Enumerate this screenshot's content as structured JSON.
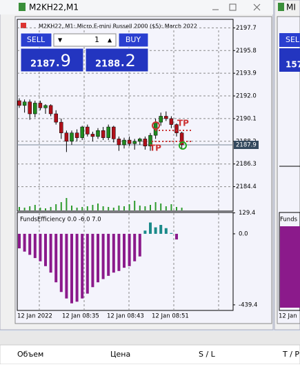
{
  "window": {
    "title": "M2KH22,M1",
    "chart_title": "M2KH22, M1:  Micro E-mini Russell 2000 ($5): March 2022"
  },
  "trade_panel": {
    "sell": "SELL",
    "buy": "BUY",
    "volume": "1",
    "bid_big": "2187",
    "bid_small": ".9",
    "ask_big": "2188",
    "ask_small": ".2"
  },
  "chart": {
    "ylim": [
      2182.7,
      2198.3
    ],
    "yticks": [
      {
        "value": 2197.7,
        "label": "2197.7"
      },
      {
        "value": 2195.8,
        "label": "2195.8"
      },
      {
        "value": 2193.9,
        "label": "2193.9"
      },
      {
        "value": 2192.0,
        "label": "2192.0"
      },
      {
        "value": 2190.1,
        "label": "2190.1"
      },
      {
        "value": 2188.2,
        "label": "2188.2"
      },
      {
        "value": 2186.3,
        "label": "2186.3"
      },
      {
        "value": 2184.4,
        "label": "2184.4"
      }
    ],
    "current_price": {
      "value": 2187.9,
      "label": "2187.9"
    },
    "candles": [
      [
        2191.6,
        2191.8,
        2191.0,
        2191.2
      ],
      [
        2191.2,
        2191.7,
        2190.6,
        2191.5
      ],
      [
        2191.5,
        2191.7,
        2190.0,
        2190.5
      ],
      [
        2190.5,
        2191.6,
        2190.2,
        2191.4
      ],
      [
        2191.4,
        2191.6,
        2190.8,
        2191.0
      ],
      [
        2191.0,
        2191.3,
        2190.5,
        2191.2
      ],
      [
        2191.2,
        2191.3,
        2190.3,
        2190.5
      ],
      [
        2190.5,
        2190.8,
        2189.6,
        2189.8
      ],
      [
        2189.8,
        2190.1,
        2188.4,
        2188.9
      ],
      [
        2188.9,
        2189.1,
        2187.3,
        2188.2
      ],
      [
        2188.2,
        2189.1,
        2187.9,
        2188.9
      ],
      [
        2188.9,
        2189.2,
        2188.2,
        2188.5
      ],
      [
        2188.5,
        2189.5,
        2188.3,
        2189.4
      ],
      [
        2189.4,
        2189.6,
        2188.6,
        2188.8
      ],
      [
        2188.8,
        2189.0,
        2188.2,
        2188.6
      ],
      [
        2188.6,
        2189.3,
        2188.4,
        2189.1
      ],
      [
        2189.1,
        2189.4,
        2188.3,
        2188.5
      ],
      [
        2188.5,
        2189.6,
        2188.3,
        2189.4
      ],
      [
        2189.4,
        2189.5,
        2188.1,
        2188.4
      ],
      [
        2188.4,
        2188.6,
        2187.4,
        2187.9
      ],
      [
        2187.9,
        2188.5,
        2187.6,
        2188.3
      ],
      [
        2188.3,
        2188.6,
        2187.8,
        2188.0
      ],
      [
        2188.0,
        2188.4,
        2187.5,
        2188.2
      ],
      [
        2188.2,
        2188.5,
        2187.9,
        2188.4
      ],
      [
        2188.4,
        2188.6,
        2187.5,
        2187.8
      ],
      [
        2187.8,
        2188.9,
        2187.4,
        2188.7
      ],
      [
        2188.7,
        2190.1,
        2188.4,
        2189.8
      ],
      [
        2189.8,
        2190.6,
        2189.5,
        2190.3
      ],
      [
        2190.3,
        2190.7,
        2189.9,
        2190.1
      ],
      [
        2190.1,
        2190.3,
        2189.3,
        2189.6
      ],
      [
        2189.6,
        2189.7,
        2188.6,
        2188.9
      ],
      [
        2188.9,
        2189.0,
        2187.6,
        2187.9
      ]
    ],
    "volumes": [
      5,
      4,
      6,
      8,
      4,
      3,
      5,
      9,
      12,
      18,
      7,
      4,
      5,
      6,
      8,
      10,
      6,
      5,
      4,
      7,
      6,
      9,
      14,
      7,
      6,
      8,
      12,
      10,
      6,
      9,
      5,
      4
    ],
    "vlim": [
      0,
      100
    ],
    "tp_label": "TP",
    "time_labels": [
      "12 Jan 2022",
      "12 Jan 08:35",
      "12 Jan 08:43",
      "12 Jan 08:51"
    ]
  },
  "indicator": {
    "name": "FundsEfficiency 0.0 -6.0 7.0",
    "ylim": [
      -474,
      132
    ],
    "yticks": [
      {
        "value": 129.4,
        "label": "129.4"
      },
      {
        "value": 0,
        "label": "0.0"
      },
      {
        "value": -439.4,
        "label": "-439.4"
      }
    ],
    "values": [
      -90,
      -110,
      -130,
      -150,
      -170,
      -200,
      -240,
      -300,
      -360,
      -400,
      -430,
      -420,
      -400,
      -370,
      -330,
      -300,
      -280,
      -260,
      -240,
      -230,
      -210,
      -200,
      -170,
      -140,
      20,
      70,
      40,
      55,
      35,
      5,
      -35,
      0
    ]
  },
  "side_window": {
    "title": "MI",
    "sell": "SEL",
    "price": "157",
    "indicator": "Funds",
    "time": "12 Jan"
  },
  "bottom_panel": {
    "columns": [
      "Объем",
      "Цена",
      "S / L",
      "T / P"
    ]
  }
}
